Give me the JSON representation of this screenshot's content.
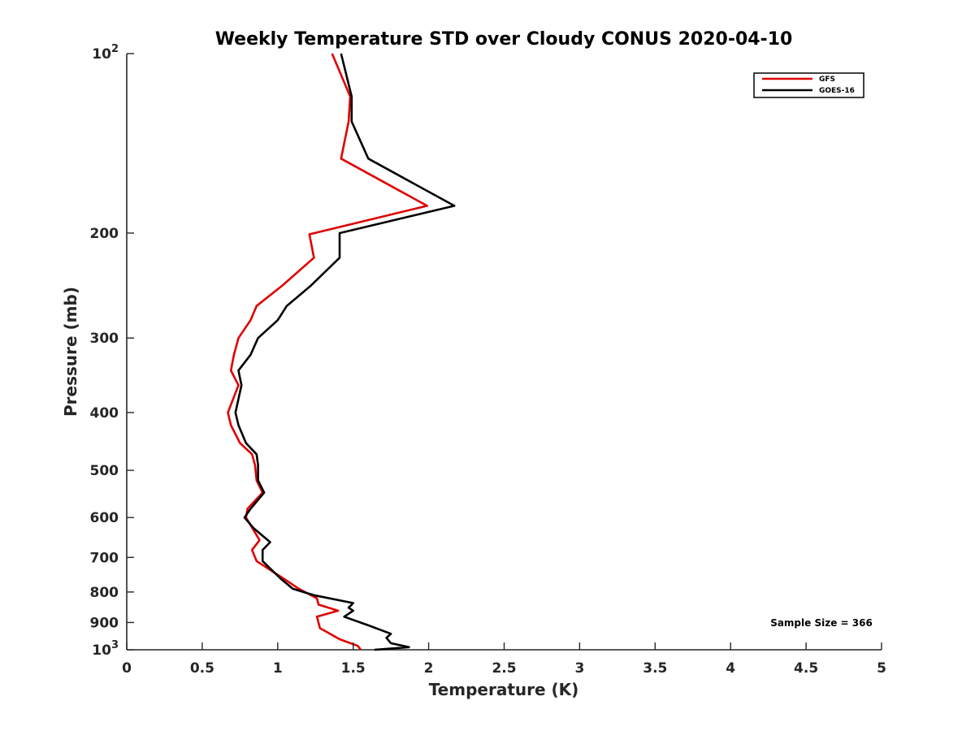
{
  "chart_data": {
    "type": "line",
    "title": "Weekly Temperature STD over Cloudy CONUS 2020-04-10",
    "xlabel": "Temperature (K)",
    "ylabel": "Pressure (mb)",
    "xlim": [
      0,
      5
    ],
    "ylim": [
      100,
      1000
    ],
    "y_scale": "log",
    "y_reversed": true,
    "x_ticks": [
      0,
      0.5,
      1,
      1.5,
      2,
      2.5,
      3,
      3.5,
      4,
      4.5,
      5
    ],
    "x_tick_labels": [
      "0",
      "0.5",
      "1",
      "1.5",
      "2",
      "2.5",
      "3",
      "3.5",
      "4",
      "4.5",
      "5"
    ],
    "y_ticks": [
      100,
      200,
      300,
      400,
      500,
      600,
      700,
      800,
      900,
      1000
    ],
    "y_tick_labels": [
      "10^2",
      "200",
      "300",
      "400",
      "500",
      "600",
      "700",
      "800",
      "900",
      "10^3"
    ],
    "grid": false,
    "legend": "top-right",
    "annotation": "Sample Size = 366",
    "series": [
      {
        "name": "GFS",
        "color": "#e00000",
        "points": [
          [
            1.36,
            100
          ],
          [
            1.48,
            118
          ],
          [
            1.47,
            130
          ],
          [
            1.42,
            150
          ],
          [
            1.99,
            180
          ],
          [
            1.21,
            201
          ],
          [
            1.24,
            220
          ],
          [
            1.03,
            245
          ],
          [
            0.86,
            265
          ],
          [
            0.82,
            280
          ],
          [
            0.74,
            300
          ],
          [
            0.71,
            320
          ],
          [
            0.69,
            340
          ],
          [
            0.74,
            360
          ],
          [
            0.67,
            400
          ],
          [
            0.69,
            420
          ],
          [
            0.75,
            450
          ],
          [
            0.83,
            470
          ],
          [
            0.85,
            490
          ],
          [
            0.86,
            520
          ],
          [
            0.9,
            545
          ],
          [
            0.8,
            580
          ],
          [
            0.79,
            600
          ],
          [
            0.84,
            630
          ],
          [
            0.88,
            655
          ],
          [
            0.83,
            680
          ],
          [
            0.86,
            710
          ],
          [
            1.04,
            760
          ],
          [
            1.14,
            790
          ],
          [
            1.26,
            820
          ],
          [
            1.27,
            840
          ],
          [
            1.4,
            860
          ],
          [
            1.26,
            880
          ],
          [
            1.28,
            920
          ],
          [
            1.41,
            960
          ],
          [
            1.53,
            985
          ],
          [
            1.55,
            1000
          ]
        ]
      },
      {
        "name": "GOES-16",
        "color": "#000000",
        "points": [
          [
            1.42,
            100
          ],
          [
            1.49,
            118
          ],
          [
            1.49,
            130
          ],
          [
            1.6,
            150
          ],
          [
            2.17,
            180
          ],
          [
            1.41,
            200
          ],
          [
            1.41,
            220
          ],
          [
            1.22,
            245
          ],
          [
            1.06,
            265
          ],
          [
            1.0,
            280
          ],
          [
            0.87,
            300
          ],
          [
            0.82,
            320
          ],
          [
            0.74,
            340
          ],
          [
            0.76,
            360
          ],
          [
            0.72,
            400
          ],
          [
            0.74,
            420
          ],
          [
            0.79,
            450
          ],
          [
            0.86,
            470
          ],
          [
            0.87,
            490
          ],
          [
            0.87,
            520
          ],
          [
            0.91,
            545
          ],
          [
            0.82,
            580
          ],
          [
            0.78,
            600
          ],
          [
            0.84,
            625
          ],
          [
            0.95,
            660
          ],
          [
            0.9,
            680
          ],
          [
            0.9,
            710
          ],
          [
            1.02,
            760
          ],
          [
            1.1,
            790
          ],
          [
            1.24,
            810
          ],
          [
            1.5,
            835
          ],
          [
            1.47,
            850
          ],
          [
            1.5,
            860
          ],
          [
            1.44,
            880
          ],
          [
            1.6,
            910
          ],
          [
            1.75,
            940
          ],
          [
            1.72,
            955
          ],
          [
            1.75,
            975
          ],
          [
            1.87,
            990
          ],
          [
            1.64,
            1000
          ]
        ]
      }
    ]
  }
}
